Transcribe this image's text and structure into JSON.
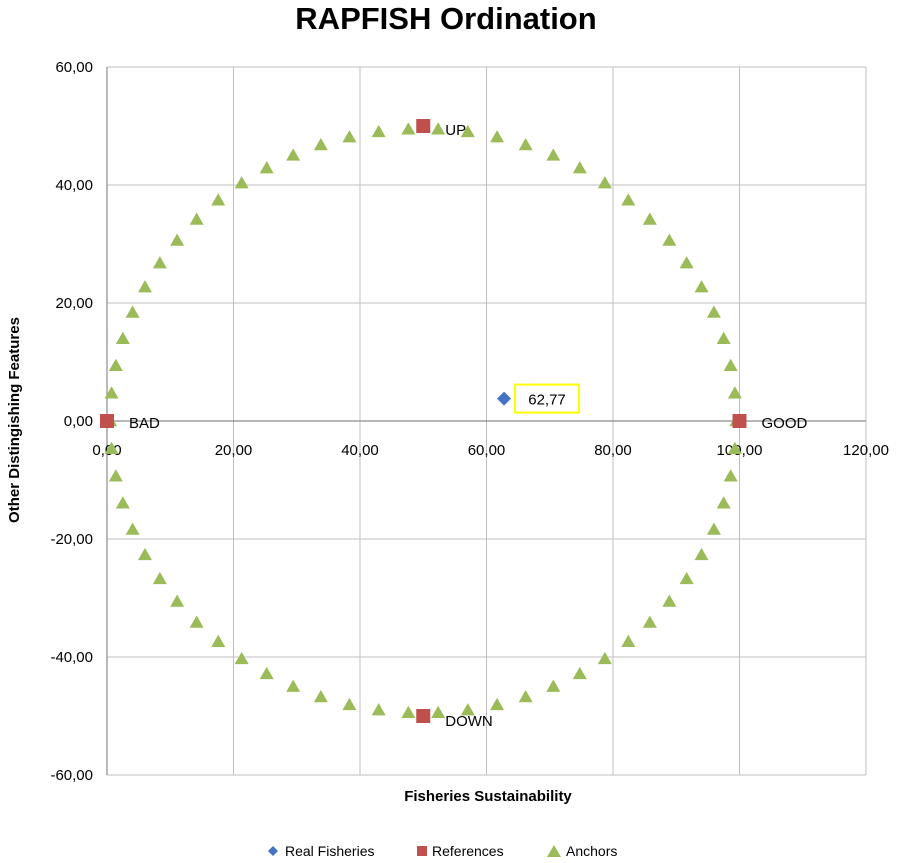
{
  "chart_data": {
    "type": "scatter",
    "title": "RAPFISH Ordination",
    "xlabel": "Fisheries Sustainability",
    "ylabel": "Other Distingishing Features",
    "xlim": [
      0,
      120
    ],
    "ylim": [
      -60,
      60
    ],
    "xticks": [
      "0,00",
      "20,00",
      "40,00",
      "60,00",
      "80,00",
      "100,00",
      "120,00"
    ],
    "yticks": [
      "60,00",
      "40,00",
      "20,00",
      "0,00",
      "-20,00",
      "-40,00",
      "-60,00"
    ],
    "grid": true,
    "legend_position": "bottom",
    "series": [
      {
        "name": "Real Fisheries",
        "marker": "diamond",
        "color": "#4472C4",
        "points": [
          {
            "x": 62.77,
            "y": 3.8,
            "label": "62,77"
          }
        ]
      },
      {
        "name": "References",
        "marker": "square",
        "color": "#C0504D",
        "points": [
          {
            "x": 0,
            "y": 0,
            "label": "BAD"
          },
          {
            "x": 100,
            "y": 0,
            "label": "GOOD"
          },
          {
            "x": 50,
            "y": 50,
            "label": "UP"
          },
          {
            "x": 50,
            "y": -50,
            "label": "DOWN"
          }
        ]
      },
      {
        "name": "Anchors",
        "marker": "triangle",
        "color": "#9BBB59",
        "shape": "circle",
        "center": [
          50,
          0
        ],
        "radius": 49.5,
        "count": 66
      }
    ]
  }
}
